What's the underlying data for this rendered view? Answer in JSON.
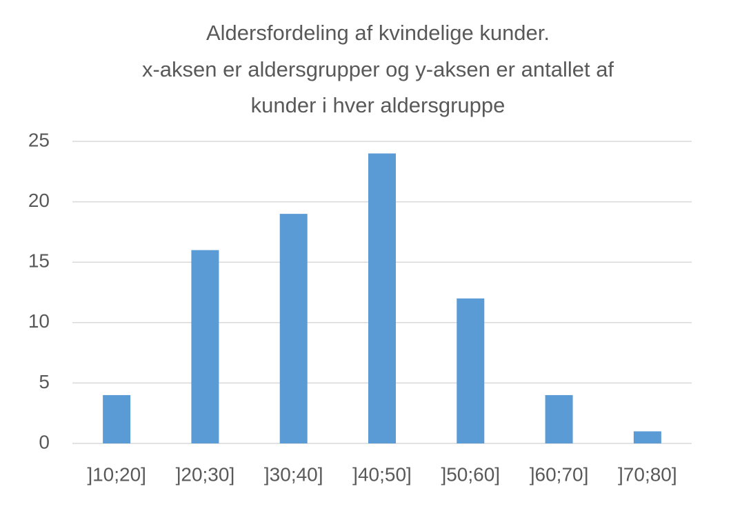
{
  "chart_data": {
    "type": "bar",
    "title": [
      "Aldersfordeling af kvindelige kunder.",
      "x-aksen er aldersgrupper og y-aksen er antallet af",
      "kunder i hver aldersgruppe"
    ],
    "categories": [
      "]10;20]",
      "]20;30]",
      "]30;40]",
      "]40;50]",
      "]50;60]",
      "]60;70]",
      "]70;80]"
    ],
    "values": [
      4,
      16,
      19,
      24,
      12,
      4,
      1
    ],
    "color": "#5b9bd5",
    "ylim": [
      0,
      25
    ],
    "yticks": [
      0,
      5,
      10,
      15,
      20,
      25
    ],
    "grid": true
  }
}
